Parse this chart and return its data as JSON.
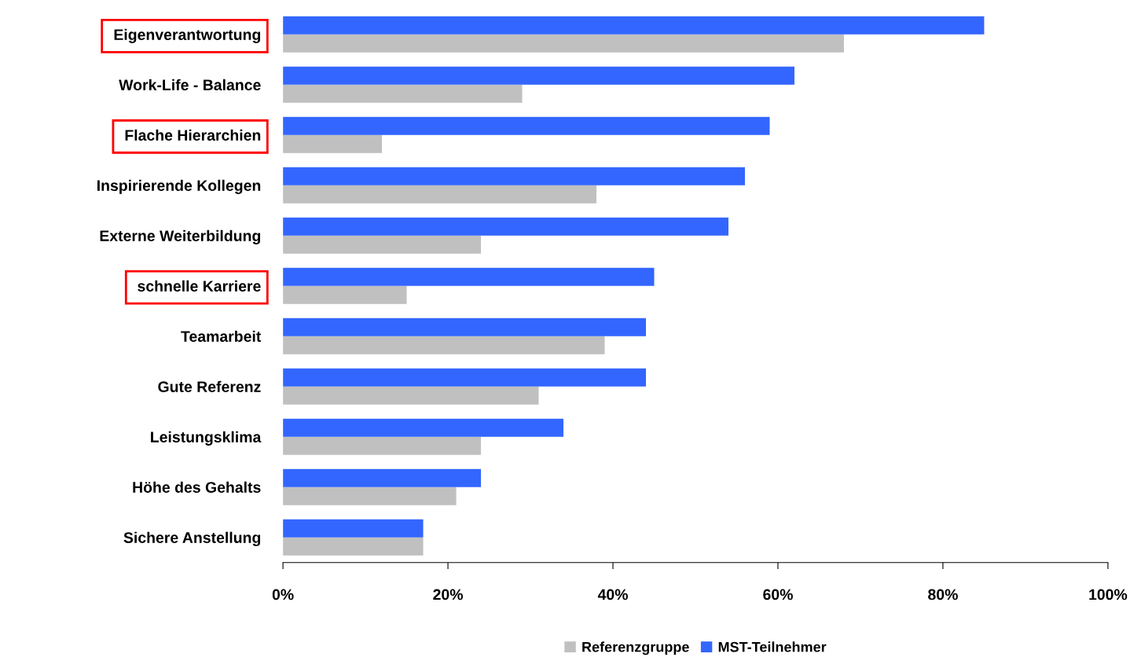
{
  "chart_data": {
    "type": "bar",
    "orientation": "horizontal",
    "categories": [
      "Eigenverantwortung",
      "Work-Life - Balance",
      "Flache Hierarchien",
      "Inspirierende Kollegen",
      "Externe Weiterbildung",
      "schnelle Karriere",
      "Teamarbeit",
      "Gute Referenz",
      "Leistungsklima",
      "Höhe des Gehalts",
      "Sichere Anstellung"
    ],
    "series": [
      {
        "name": "Referenzgruppe",
        "color": "#c0c0c0",
        "values": [
          68,
          29,
          12,
          38,
          24,
          15,
          39,
          31,
          24,
          21,
          17
        ]
      },
      {
        "name": "MST-Teilnehmer",
        "color": "#3366ff",
        "values": [
          85,
          62,
          59,
          56,
          54,
          45,
          44,
          44,
          34,
          24,
          17
        ]
      }
    ],
    "xlim": [
      0,
      100
    ],
    "xticks": [
      {
        "value": 0,
        "label": "0%"
      },
      {
        "value": 20,
        "label": "20%"
      },
      {
        "value": 40,
        "label": "40%"
      },
      {
        "value": 60,
        "label": "60%"
      },
      {
        "value": 80,
        "label": "80%"
      },
      {
        "value": 100,
        "label": "100%"
      }
    ],
    "grid": false,
    "legend": "bottom"
  }
}
